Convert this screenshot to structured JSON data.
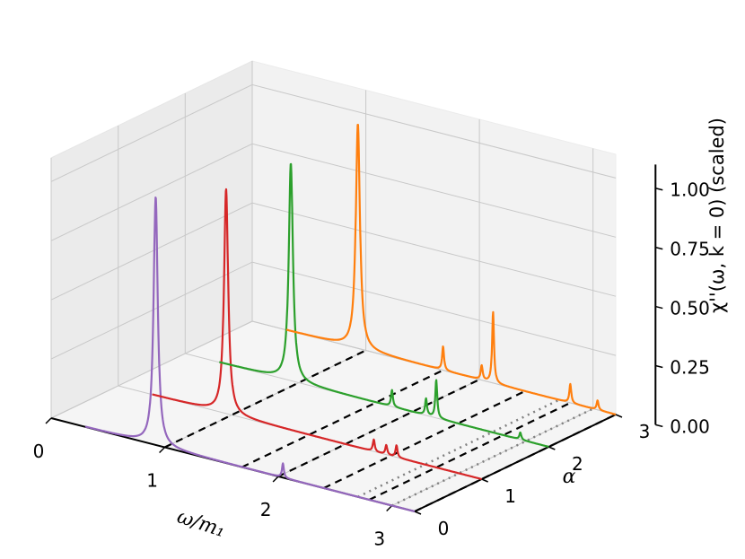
{
  "chart_data": {
    "type": "line",
    "projection": "3d",
    "x_axis": {
      "label": "ω/m₁",
      "ticks": [
        "0",
        "1",
        "2",
        "3"
      ],
      "range": [
        0,
        3.2
      ]
    },
    "y_axis": {
      "label": "α",
      "ticks": [
        "0",
        "1",
        "2",
        "3"
      ],
      "range": [
        0,
        3
      ]
    },
    "z_axis": {
      "label": "χ''(ω, k = 0)  (scaled)",
      "ticks": [
        "0.00",
        "0.25",
        "0.50",
        "0.75",
        "1.00"
      ],
      "range": [
        0,
        1.1
      ]
    },
    "grid": true,
    "series": [
      {
        "alpha": 0,
        "color": "#9467bd",
        "peaks": [
          [
            0.92,
            1.05
          ],
          [
            2.04,
            0.06
          ]
        ]
      },
      {
        "alpha": 1,
        "color": "#d62728",
        "peaks": [
          [
            0.95,
            0.95
          ],
          [
            2.25,
            0.05
          ],
          [
            2.36,
            0.04
          ],
          [
            2.45,
            0.05
          ]
        ]
      },
      {
        "alpha": 2,
        "color": "#2ca02c",
        "peaks": [
          [
            0.93,
            0.92
          ],
          [
            1.82,
            0.07
          ],
          [
            2.12,
            0.07
          ],
          [
            2.21,
            0.16
          ],
          [
            2.95,
            0.03
          ]
        ]
      },
      {
        "alpha": 3,
        "color": "#ff7f0e",
        "peaks": [
          [
            0.93,
            0.95
          ],
          [
            1.68,
            0.1
          ],
          [
            2.02,
            0.06
          ],
          [
            2.12,
            0.3
          ],
          [
            2.8,
            0.08
          ],
          [
            3.04,
            0.04
          ]
        ]
      }
    ],
    "guide_lines": [
      {
        "omega": 1.0,
        "style": "dashed",
        "color": "#000000"
      },
      {
        "omega": 1.68,
        "style": "dashed",
        "color": "#000000"
      },
      {
        "omega": 2.0,
        "style": "dashed",
        "color": "#000000"
      },
      {
        "omega": 2.4,
        "style": "dashed",
        "color": "#000000"
      },
      {
        "omega": 2.8,
        "style": "dashed",
        "color": "#000000"
      },
      {
        "omega": 3.2,
        "style": "dashed",
        "color": "#000000"
      },
      {
        "omega": 2.7,
        "style": "dotted",
        "color": "#808080"
      },
      {
        "omega": 3.0,
        "style": "dotted",
        "color": "#808080"
      }
    ]
  }
}
